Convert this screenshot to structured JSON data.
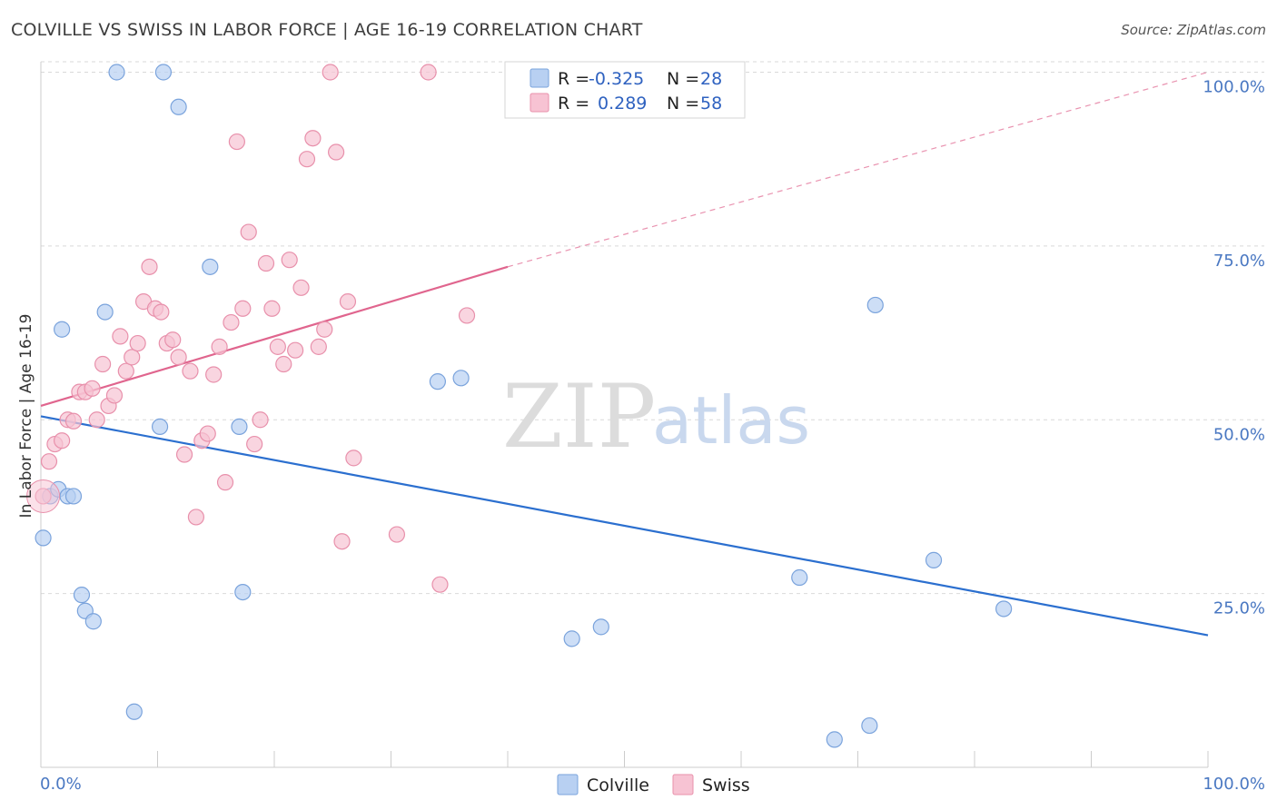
{
  "title": "COLVILLE VS SWISS IN LABOR FORCE | AGE 16-19 CORRELATION CHART",
  "source": "Source: ZipAtlas.com",
  "watermark": {
    "zip": "ZIP",
    "atlas": "atlas"
  },
  "colors": {
    "colville_fill": "#b8d0f2",
    "colville_stroke": "#7aa3dc",
    "colville_line": "#2b6fcf",
    "swiss_fill": "#f7c3d3",
    "swiss_stroke": "#e890ab",
    "swiss_line": "#e0658e",
    "grid": "#d9d9d9",
    "tick_text": "#4a78c2"
  },
  "legend_top": {
    "rows": [
      {
        "series": "Colville",
        "r_label": "R =",
        "r_value": "-0.325",
        "n_label": "N =",
        "n_value": "28"
      },
      {
        "series": "Swiss",
        "r_label": "R =",
        "r_value": "0.289",
        "n_label": "N =",
        "n_value": "58"
      }
    ]
  },
  "chart_data": {
    "type": "scatter",
    "title": "COLVILLE VS SWISS IN LABOR FORCE | AGE 16-19 CORRELATION CHART",
    "xlabel": "",
    "ylabel": "In Labor Force | Age 16-19",
    "xlim": [
      0,
      100
    ],
    "ylim": [
      0,
      102
    ],
    "x_tick_labels": [
      "0.0%",
      "100.0%"
    ],
    "y_ticks": [
      25,
      50,
      75,
      100
    ],
    "y_tick_labels": [
      "25.0%",
      "50.0%",
      "75.0%",
      "100.0%"
    ],
    "grid": true,
    "legend_position": "bottom-center",
    "series": [
      {
        "name": "Colville",
        "points": [
          [
            0.2,
            33
          ],
          [
            0.8,
            39
          ],
          [
            1.5,
            40
          ],
          [
            2.3,
            39
          ],
          [
            2.8,
            39
          ],
          [
            3.5,
            24.8
          ],
          [
            3.8,
            22.5
          ],
          [
            4.5,
            21
          ],
          [
            5.5,
            65.5
          ],
          [
            1.8,
            63
          ],
          [
            8,
            8
          ],
          [
            6.5,
            100
          ],
          [
            10.5,
            100
          ],
          [
            11.8,
            95
          ],
          [
            10.2,
            49
          ],
          [
            14.5,
            72
          ],
          [
            17,
            49
          ],
          [
            17.3,
            25.2
          ],
          [
            34,
            55.5
          ],
          [
            36,
            56
          ],
          [
            45.5,
            18.5
          ],
          [
            48,
            20.2
          ],
          [
            65,
            27.3
          ],
          [
            68,
            4
          ],
          [
            71,
            6
          ],
          [
            71.5,
            66.5
          ],
          [
            76.5,
            29.8
          ],
          [
            82.5,
            22.8
          ]
        ],
        "trend": {
          "x0": 0,
          "y0": 50.5,
          "x1": 100,
          "y1": 19
        }
      },
      {
        "name": "Swiss",
        "points": [
          [
            0.2,
            39
          ],
          [
            0.7,
            44
          ],
          [
            1.2,
            46.5
          ],
          [
            1.8,
            47
          ],
          [
            2.3,
            50
          ],
          [
            2.8,
            49.8
          ],
          [
            3.3,
            54
          ],
          [
            3.8,
            54
          ],
          [
            4.4,
            54.5
          ],
          [
            4.8,
            50
          ],
          [
            5.3,
            58
          ],
          [
            5.8,
            52
          ],
          [
            6.3,
            53.5
          ],
          [
            6.8,
            62
          ],
          [
            7.3,
            57
          ],
          [
            7.8,
            59
          ],
          [
            8.3,
            61
          ],
          [
            8.8,
            67
          ],
          [
            9.3,
            72
          ],
          [
            9.8,
            66
          ],
          [
            10.3,
            65.5
          ],
          [
            10.8,
            61
          ],
          [
            11.3,
            61.5
          ],
          [
            11.8,
            59
          ],
          [
            12.3,
            45
          ],
          [
            12.8,
            57
          ],
          [
            13.3,
            36
          ],
          [
            13.8,
            47
          ],
          [
            14.3,
            48
          ],
          [
            14.8,
            56.5
          ],
          [
            15.3,
            60.5
          ],
          [
            15.8,
            41
          ],
          [
            16.3,
            64
          ],
          [
            16.8,
            90
          ],
          [
            17.3,
            66
          ],
          [
            17.8,
            77
          ],
          [
            18.3,
            46.5
          ],
          [
            18.8,
            50
          ],
          [
            19.3,
            72.5
          ],
          [
            19.8,
            66
          ],
          [
            20.3,
            60.5
          ],
          [
            20.8,
            58
          ],
          [
            21.3,
            73
          ],
          [
            21.8,
            60
          ],
          [
            22.3,
            69
          ],
          [
            22.8,
            87.5
          ],
          [
            23.3,
            90.5
          ],
          [
            23.8,
            60.5
          ],
          [
            24.3,
            63
          ],
          [
            24.8,
            100
          ],
          [
            25.3,
            88.5
          ],
          [
            25.8,
            32.5
          ],
          [
            26.3,
            67
          ],
          [
            26.8,
            44.5
          ],
          [
            30.5,
            33.5
          ],
          [
            34.2,
            26.3
          ],
          [
            33.2,
            100
          ],
          [
            36.5,
            65
          ]
        ],
        "trend": {
          "x0": 0,
          "y0": 52,
          "x1": 40,
          "y1": 72
        },
        "trend_extension": {
          "x0": 40,
          "y0": 72,
          "x1": 100,
          "y1": 100
        }
      }
    ]
  }
}
